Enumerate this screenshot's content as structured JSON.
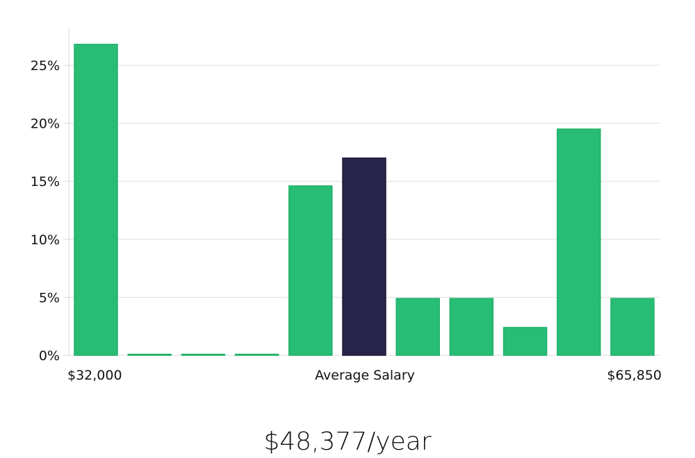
{
  "chart_data": {
    "type": "bar",
    "y_ticks": [
      "0%",
      "5%",
      "10%",
      "15%",
      "20%",
      "25%"
    ],
    "y_tick_values": [
      0,
      5,
      10,
      15,
      20,
      25
    ],
    "ylim": [
      0,
      28
    ],
    "values": [
      26.8,
      0.05,
      0.05,
      0.05,
      14.6,
      17.0,
      4.9,
      4.9,
      2.4,
      19.5,
      4.9
    ],
    "highlight_index": 5,
    "x_labels": {
      "left": "$32,000",
      "center": "Average Salary",
      "right": "$65,850"
    },
    "headline": "$48,377/year",
    "grid": true,
    "legend": "none"
  },
  "colors": {
    "bar": "#27bd74",
    "bar_stroke": "#20b069",
    "highlight": "#29254a",
    "highlight_stroke": "#1c1838"
  }
}
